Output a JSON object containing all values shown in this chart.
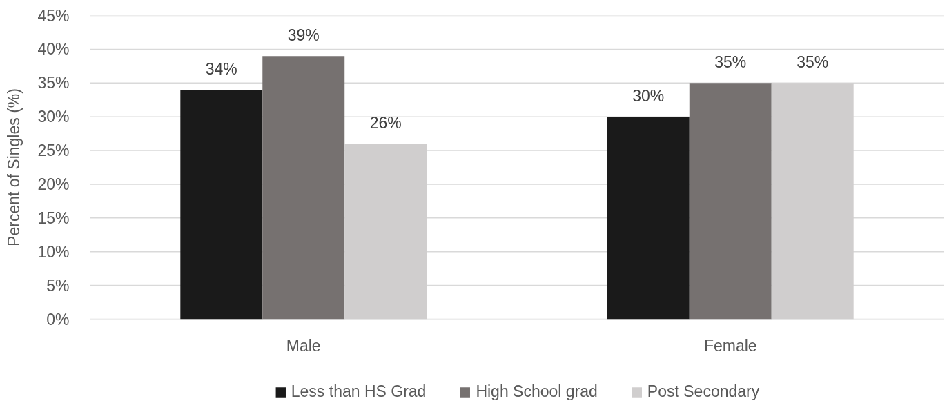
{
  "chart_data": {
    "type": "bar",
    "categories": [
      "Male",
      "Female"
    ],
    "ylabel": "Percent of Singles (%)",
    "ylim": [
      0,
      45
    ],
    "yticks": [
      {
        "value": 0,
        "label": "0%"
      },
      {
        "value": 5,
        "label": "5%"
      },
      {
        "value": 10,
        "label": "10%"
      },
      {
        "value": 15,
        "label": "15%"
      },
      {
        "value": 20,
        "label": "20%"
      },
      {
        "value": 25,
        "label": "25%"
      },
      {
        "value": 30,
        "label": "30%"
      },
      {
        "value": 35,
        "label": "35%"
      },
      {
        "value": 40,
        "label": "40%"
      },
      {
        "value": 45,
        "label": "45%"
      }
    ],
    "grid": "y",
    "legend": "bottom",
    "series": [
      {
        "name": "Less than HS Grad",
        "color": "#1a1a1a",
        "values": [
          34,
          30
        ],
        "value_labels": [
          "34%",
          "30%"
        ]
      },
      {
        "name": "High School grad",
        "color": "#767170",
        "values": [
          39,
          35
        ],
        "value_labels": [
          "39%",
          "35%"
        ]
      },
      {
        "name": "Post Secondary",
        "color": "#d0cece",
        "values": [
          26,
          35
        ],
        "value_labels": [
          "26%",
          "35%"
        ]
      }
    ]
  }
}
